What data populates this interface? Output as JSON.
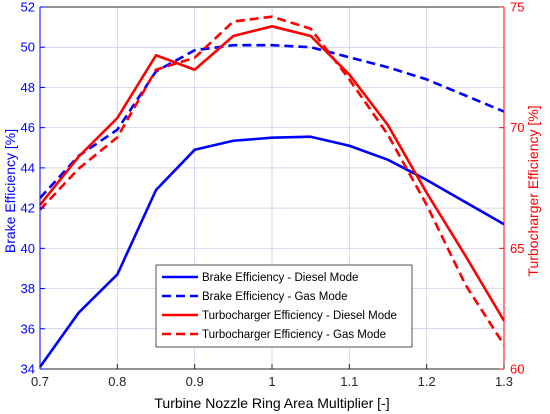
{
  "chart_data": {
    "type": "line",
    "xlabel": "Turbine Nozzle Ring Area Multiplier [-]",
    "ylabel_left": "Brake Efficiency [%]",
    "ylabel_right": "Turbocharger Efficiency [%]",
    "xlim": [
      0.7,
      1.3
    ],
    "ylim_left": [
      34,
      52
    ],
    "ylim_right": [
      60,
      75
    ],
    "x_ticks": [
      0.7,
      0.8,
      0.9,
      1,
      1.1,
      1.2,
      1.3
    ],
    "x_tick_labels": [
      "0.7",
      "0.8",
      "0.9",
      "1",
      "1.1",
      "1.2",
      "1.3"
    ],
    "y_left_ticks": [
      34,
      36,
      38,
      40,
      42,
      44,
      46,
      48,
      50,
      52
    ],
    "y_left_tick_labels": [
      "34",
      "36",
      "38",
      "40",
      "42",
      "44",
      "46",
      "48",
      "50",
      "52"
    ],
    "y_right_ticks": [
      60,
      65,
      70,
      75
    ],
    "y_right_tick_labels": [
      "60",
      "65",
      "70",
      "75"
    ],
    "grid": true,
    "legend_position": "bottom-center",
    "colors": {
      "left_axis": "#0000ff",
      "right_axis": "#ff0000",
      "grid": "#c8c8e6"
    },
    "x": [
      0.7,
      0.75,
      0.8,
      0.85,
      0.9,
      0.95,
      1.0,
      1.05,
      1.1,
      1.15,
      1.2,
      1.25,
      1.3
    ],
    "series": [
      {
        "name": "Brake Efficiency - Diesel Mode",
        "axis": "left",
        "color": "#0000ff",
        "dash": "solid",
        "values": [
          34.1,
          36.8,
          38.7,
          42.9,
          44.9,
          45.35,
          45.5,
          45.55,
          45.1,
          44.4,
          43.4,
          42.3,
          41.2
        ]
      },
      {
        "name": "Brake Efficiency - Gas Mode",
        "axis": "left",
        "color": "#0000ff",
        "dash": "dashed",
        "values": [
          42.5,
          44.6,
          45.9,
          48.8,
          49.85,
          50.1,
          50.1,
          50.0,
          49.5,
          49.0,
          48.4,
          47.6,
          46.8
        ]
      },
      {
        "name": "Turbocharger Efficiency - Diesel Mode",
        "axis": "right",
        "color": "#ff0000",
        "dash": "solid",
        "values": [
          66.8,
          68.8,
          70.4,
          73.0,
          72.4,
          73.8,
          74.2,
          73.8,
          72.2,
          70.1,
          67.3,
          64.7,
          62.0
        ]
      },
      {
        "name": "Turbocharger Efficiency - Gas Mode",
        "axis": "right",
        "color": "#ff0000",
        "dash": "dashed",
        "values": [
          66.6,
          68.3,
          69.6,
          72.4,
          72.9,
          74.4,
          74.6,
          74.1,
          72.0,
          69.7,
          66.8,
          63.5,
          61.0
        ]
      }
    ]
  }
}
